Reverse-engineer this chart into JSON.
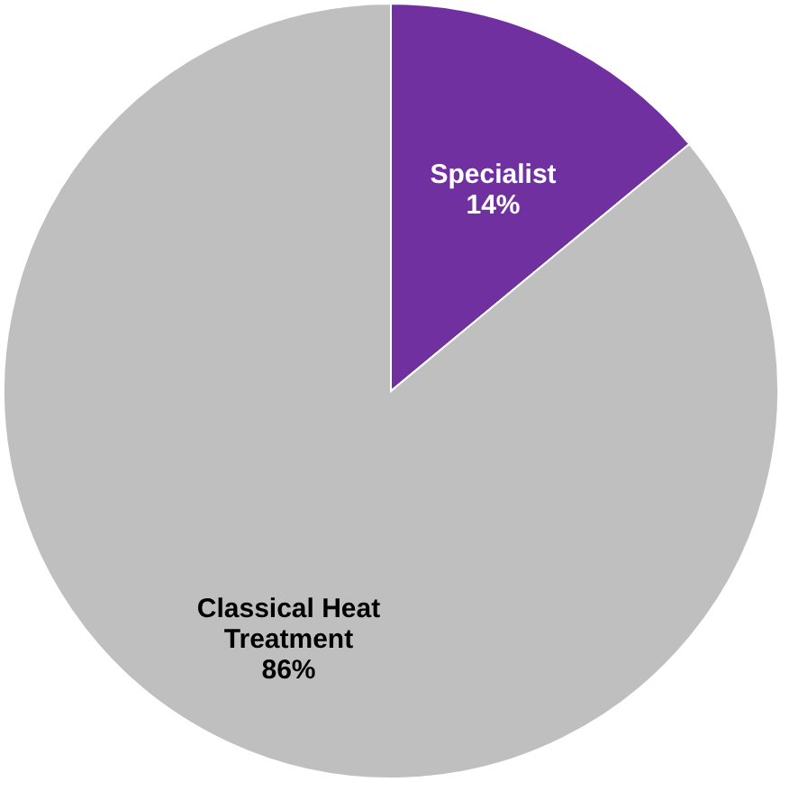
{
  "chart_data": {
    "type": "pie",
    "categories": [
      "Specialist",
      "Classical Heat Treatment"
    ],
    "values": [
      14,
      86
    ],
    "colors": [
      "#7030a0",
      "#bfbfbf"
    ],
    "value_labels": [
      "14%",
      "86%"
    ],
    "legend": false
  }
}
